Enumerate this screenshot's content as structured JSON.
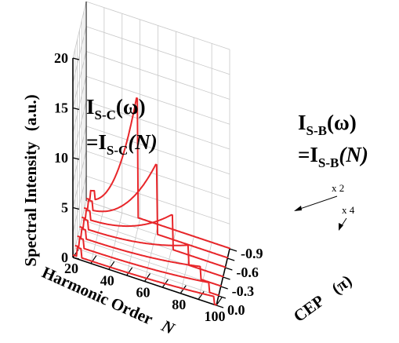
{
  "chart_data": {
    "type": "line",
    "title": "",
    "zlabel": "Spectral Intensity",
    "zunit": "(a.u.)",
    "zlim": [
      0,
      20
    ],
    "zticks": [
      "0",
      "5",
      "10",
      "15",
      "20"
    ],
    "xlabel": "Harmonic Order",
    "xsymbol": "N",
    "xlim": [
      20,
      100
    ],
    "xticks": [
      "20",
      "40",
      "60",
      "80",
      "100"
    ],
    "ylabel": "CEP",
    "yunit": "(π)",
    "ylim": [
      0,
      -0.9
    ],
    "yticks": [
      "0.0",
      "-0.3",
      "-0.6",
      "-0.9"
    ],
    "grid": true,
    "colors": {
      "curve": "#e8262a",
      "grid": "#c8c8c8",
      "axis": "#000000"
    },
    "series": [
      {
        "cep": 0.0,
        "cutoff": 98,
        "peak": 0.8
      },
      {
        "cep": -0.15,
        "cutoff": 94,
        "peak": 1.0
      },
      {
        "cep": -0.3,
        "cutoff": 88,
        "peak": 1.3
      },
      {
        "cep": -0.45,
        "cutoff": 80,
        "peak": 2.0
      },
      {
        "cep": -0.6,
        "cutoff": 70,
        "peak": 3.5
      },
      {
        "cep": -0.75,
        "cutoff": 60,
        "peak": 7.0
      },
      {
        "cep": -0.9,
        "cutoff": 48,
        "peak": 12.0
      }
    ],
    "annotations": {
      "sc_line1_main": "I",
      "sc_line1_sub": "S-C",
      "sc_line1_tail": "(ω)",
      "sc_line2_main": "=I",
      "sc_line2_sub": "S-C",
      "sc_line2_tail": "(N)",
      "sb_line1_main": "I",
      "sb_line1_sub": "S-B",
      "sb_line1_tail": "(ω)",
      "sb_line2_main": "=I",
      "sb_line2_sub": "S-B",
      "sb_line2_tail": "(N)",
      "scale_x2": "x 2",
      "scale_x4": "x 4"
    }
  }
}
